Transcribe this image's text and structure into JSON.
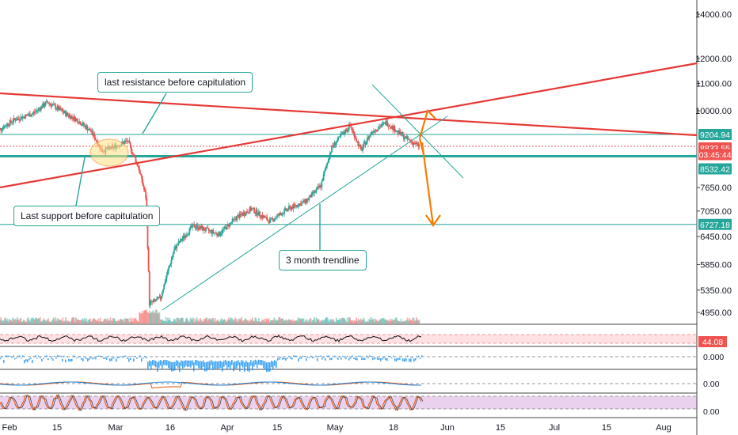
{
  "colors": {
    "up": "#26a69a",
    "down": "#ef5350",
    "resistance_line": "#e53935",
    "trendline": "#26a69a",
    "projection": "#f57c00",
    "horizontal_level": "#26a69a",
    "rsi_panel_fill": "#ffcdd2",
    "stoch_panel_fill": "#e1bee7",
    "macd_hist": "#2196f3",
    "axis_text": "#131722"
  },
  "chart_data": {
    "type": "candlestick",
    "symbol_context": "BTC price chart with trend annotations",
    "x_axis": {
      "tick_labels": [
        "Feb",
        "15",
        "Mar",
        "16",
        "Apr",
        "15",
        "May",
        "18",
        "Jun",
        "15",
        "Jul",
        "15",
        "Aug"
      ]
    },
    "y_axis": {
      "scale": "log",
      "tick_labels": [
        "14000.00",
        "12000.00",
        "11000.00",
        "10000.00",
        "7650.00",
        "7050.00",
        "6450.00",
        "5850.00",
        "5350.00",
        "4950.00"
      ],
      "range": [
        4700,
        15000
      ]
    },
    "price_tags": [
      {
        "text": "9204.94",
        "color": "#26a69a"
      },
      {
        "text": "8833.55",
        "color": "#ef5350"
      },
      {
        "text": "03:45:44",
        "color": "#ef5350"
      },
      {
        "text": "8532.42",
        "color": "#26a69a"
      },
      {
        "text": "6727.18",
        "color": "#26a69a"
      }
    ],
    "horizontal_levels": [
      9204.94,
      8833.55,
      8532.42,
      6727.18
    ],
    "price_path": {
      "dates": [
        "Jan 31",
        "Feb 5",
        "Feb 10",
        "Feb 14",
        "Feb 19",
        "Feb 22",
        "Feb 26",
        "Feb 29",
        "Mar 3",
        "Mar 7",
        "Mar 10",
        "Mar 12",
        "Mar 13",
        "Mar 16",
        "Mar 20",
        "Mar 25",
        "Apr 1",
        "Apr 6",
        "Apr 10",
        "Apr 15",
        "Apr 20",
        "Apr 25",
        "Apr 29",
        "May 2",
        "May 7",
        "May 10",
        "May 13",
        "May 17",
        "May 20",
        "May 22",
        "May 25",
        "May 26"
      ],
      "close": [
        9300,
        9700,
        9900,
        10300,
        9900,
        9700,
        9300,
        8700,
        8800,
        9000,
        8200,
        7400,
        5100,
        5200,
        6200,
        6700,
        6500,
        6900,
        7100,
        6800,
        7100,
        7300,
        7700,
        8800,
        9500,
        8700,
        9300,
        9600,
        9300,
        9100,
        8900,
        8833.55
      ]
    },
    "indicators": {
      "rsi_label": "44.08",
      "macd_label": "0.000",
      "stoch_label_1": "0.00",
      "stoch_label_2": "0.00"
    },
    "annotations": [
      {
        "text": "last resistance before capitulation"
      },
      {
        "text": "Last support before capitulation"
      },
      {
        "text": "3 month trendline"
      }
    ],
    "grid": false
  }
}
